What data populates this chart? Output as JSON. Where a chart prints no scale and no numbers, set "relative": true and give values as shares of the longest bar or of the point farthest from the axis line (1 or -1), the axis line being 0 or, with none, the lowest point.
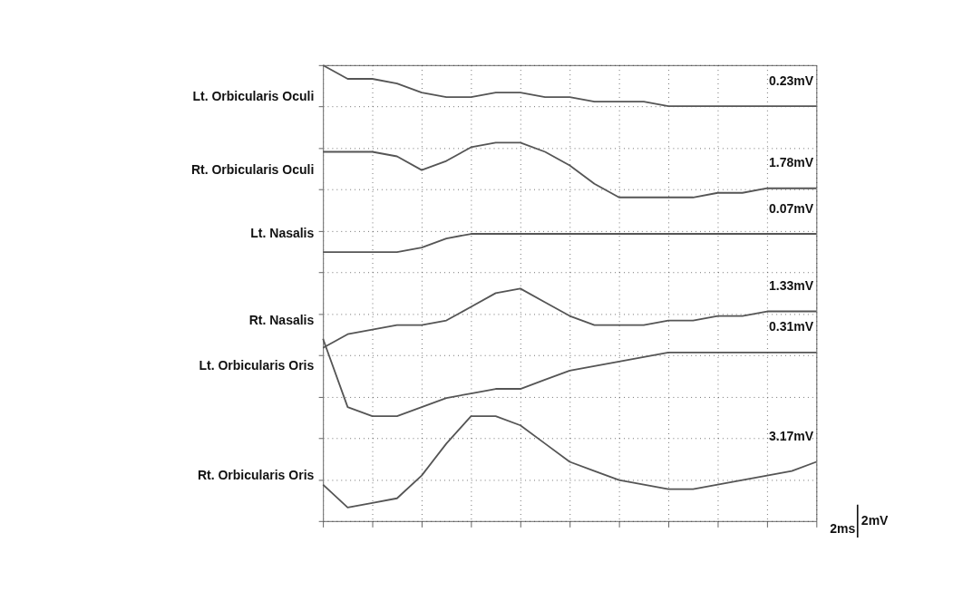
{
  "chart_data": {
    "type": "line",
    "relative": true,
    "grid": true,
    "legend": false,
    "line_style": "solid",
    "marker": "none",
    "categories": [
      null,
      null,
      null,
      null,
      null,
      null,
      null,
      null,
      null,
      null,
      null,
      null,
      null,
      null,
      null,
      null,
      null,
      null,
      null,
      null,
      null
    ],
    "series": [
      {
        "name": "Lt. Orbicularis Oculi",
        "color": "#555555",
        "values": [
          1.0,
          0.97,
          0.97,
          0.96,
          0.94,
          0.93,
          0.93,
          0.94,
          0.94,
          0.93,
          0.93,
          0.92,
          0.92,
          0.92,
          0.91,
          0.91,
          0.91,
          0.91,
          0.91,
          0.91,
          0.91
        ]
      },
      {
        "name": "Rt. Orbicularis Oculi",
        "color": "#555555",
        "values": [
          0.81,
          0.81,
          0.81,
          0.8,
          0.77,
          0.79,
          0.82,
          0.83,
          0.83,
          0.81,
          0.78,
          0.74,
          0.71,
          0.71,
          0.71,
          0.71,
          0.72,
          0.72,
          0.73,
          0.73,
          0.73
        ]
      },
      {
        "name": "Lt. Nasalis",
        "color": "#555555",
        "values": [
          0.59,
          0.59,
          0.59,
          0.59,
          0.6,
          0.62,
          0.63,
          0.63,
          0.63,
          0.63,
          0.63,
          0.63,
          0.63,
          0.63,
          0.63,
          0.63,
          0.63,
          0.63,
          0.63,
          0.63,
          0.63
        ]
      },
      {
        "name": "Rt. Nasalis",
        "color": "#555555",
        "values": [
          0.38,
          0.41,
          0.42,
          0.43,
          0.43,
          0.44,
          0.47,
          0.5,
          0.51,
          0.48,
          0.45,
          0.43,
          0.43,
          0.43,
          0.44,
          0.44,
          0.45,
          0.45,
          0.46,
          0.46,
          0.46
        ]
      },
      {
        "name": "Lt. Orbicularis Oris",
        "color": "#555555",
        "values": [
          0.4,
          0.25,
          0.23,
          0.23,
          0.25,
          0.27,
          0.28,
          0.29,
          0.29,
          0.31,
          0.33,
          0.34,
          0.35,
          0.36,
          0.37,
          0.37,
          0.37,
          0.37,
          0.37,
          0.37,
          0.37
        ]
      },
      {
        "name": "Rt. Orbicularis Oris",
        "color": "#555555",
        "values": [
          0.08,
          0.03,
          0.04,
          0.05,
          0.1,
          0.17,
          0.23,
          0.23,
          0.21,
          0.17,
          0.13,
          0.11,
          0.09,
          0.08,
          0.07,
          0.07,
          0.08,
          0.09,
          0.1,
          0.11,
          0.13
        ]
      }
    ],
    "annotations": [
      "0.23mV",
      "1.78mV",
      "0.07mV",
      "1.33mV",
      "0.31mV",
      "3.17mV",
      "2ms",
      "2mV"
    ]
  }
}
